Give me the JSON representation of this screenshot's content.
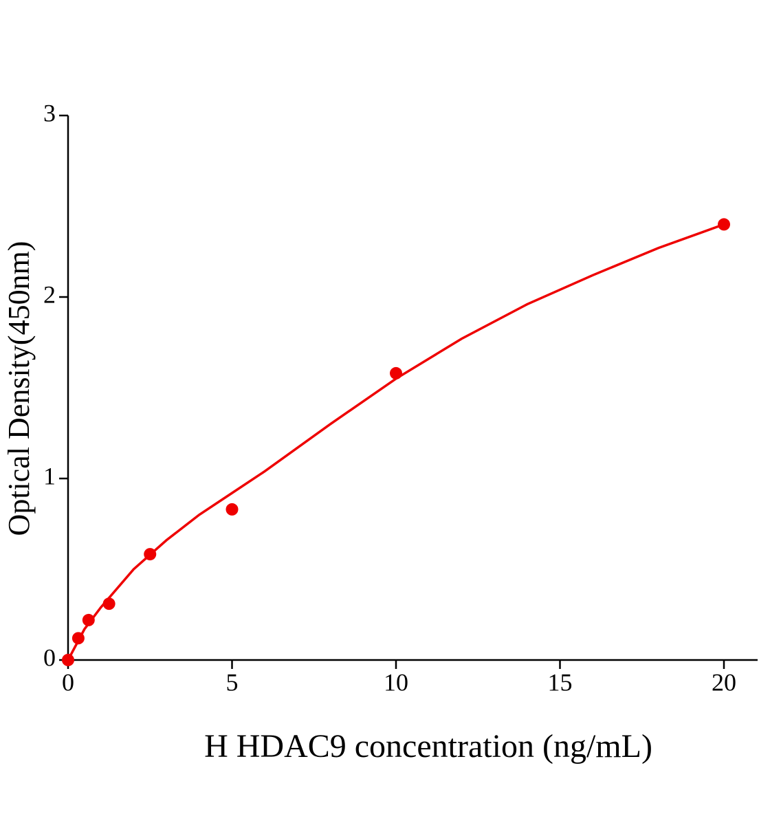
{
  "chart_data": {
    "type": "scatter",
    "xlabel": "H HDAC9 concentration (ng/mL)",
    "ylabel": "Optical Density(450nm)",
    "x": [
      0,
      0.3125,
      0.625,
      1.25,
      2.5,
      5,
      10,
      20
    ],
    "values": [
      0,
      0.12,
      0.22,
      0.31,
      0.583,
      0.83,
      1.58,
      2.4
    ],
    "color": "#ee0000",
    "fit": {
      "x": [
        0,
        0.5,
        1,
        2,
        3,
        4,
        5,
        6,
        8,
        10,
        12,
        14,
        16,
        18,
        20
      ],
      "values": [
        0,
        0.17,
        0.29,
        0.5,
        0.66,
        0.8,
        0.92,
        1.04,
        1.3,
        1.55,
        1.77,
        1.96,
        2.12,
        2.27,
        2.4
      ]
    },
    "xlim": [
      0,
      21
    ],
    "ylim": [
      0,
      3
    ],
    "xticks": [
      0,
      5,
      10,
      15,
      20
    ],
    "yticks": [
      0,
      1,
      2,
      3
    ],
    "grid": false
  }
}
